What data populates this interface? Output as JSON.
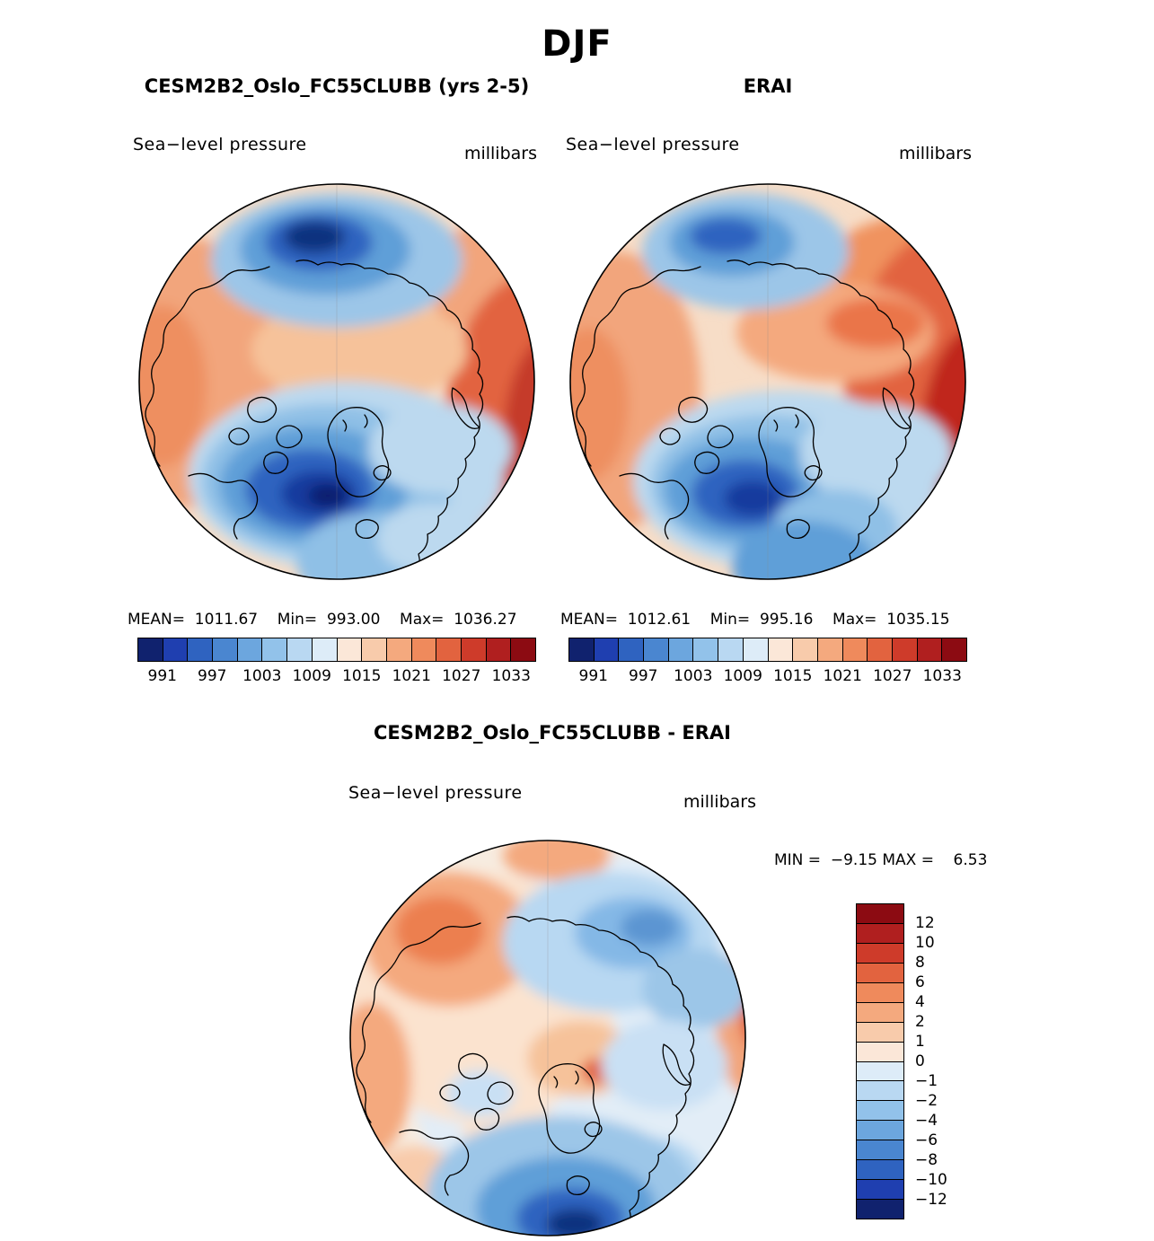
{
  "figure": {
    "season": "DJF"
  },
  "panels": [
    {
      "title": "CESM2B2_Oslo_FC55CLUBB (yrs 2-5)",
      "variable": "Sea−level pressure",
      "units": "millibars",
      "stats_line": "MEAN=  1011.67    Min=  993.00    Max=  1036.27"
    },
    {
      "title": "ERAI",
      "variable": "Sea−level pressure",
      "units": "millibars",
      "stats_line": "MEAN=  1012.61    Min=  995.16    Max=  1035.15"
    }
  ],
  "diff_panel": {
    "title": "CESM2B2_Oslo_FC55CLUBB - ERAI",
    "variable": "Sea−level pressure",
    "units": "millibars",
    "minmax_line": "MIN =  −9.15 MAX =    6.53"
  },
  "pressure_colorbar": {
    "ticks": [
      "991",
      "997",
      "1003",
      "1009",
      "1015",
      "1021",
      "1027",
      "1033"
    ],
    "colors": [
      "#10226e",
      "#1f3fb0",
      "#2f63c0",
      "#4a86d0",
      "#6ca6de",
      "#92c2ea",
      "#b9d8f2",
      "#ddecf8",
      "#fbe7d8",
      "#f8cbab",
      "#f4a97e",
      "#ef8a5c",
      "#e2633f",
      "#ce3b2a",
      "#b01f1f",
      "#8c0b12"
    ]
  },
  "diff_colorbar": {
    "labels": [
      "12",
      "10",
      "8",
      "6",
      "4",
      "2",
      "1",
      "0",
      "−1",
      "−2",
      "−4",
      "−6",
      "−8",
      "−10",
      "−12"
    ],
    "colors": [
      "#8c0b12",
      "#b01f1f",
      "#ce3b2a",
      "#e2633f",
      "#ef8a5c",
      "#f4a97e",
      "#f8cbab",
      "#fbe7d8",
      "#ddecf8",
      "#b9d8f2",
      "#92c2ea",
      "#6ca6de",
      "#4a86d0",
      "#2f63c0",
      "#1f3fb0",
      "#10226e"
    ]
  },
  "chart_data": [
    {
      "type": "heatmap",
      "panel": "top-left",
      "season": "DJF",
      "title": "CESM2B2_Oslo_FC55CLUBB (yrs 2-5)",
      "variable": "Sea-level pressure",
      "units": "millibars",
      "projection": "north polar stereographic",
      "stats": {
        "mean": 1011.67,
        "min": 993.0,
        "max": 1036.27
      },
      "colorbar_ticks": [
        991,
        997,
        1003,
        1009,
        1015,
        1021,
        1027,
        1033
      ],
      "contour_interval": 3
    },
    {
      "type": "heatmap",
      "panel": "top-right",
      "season": "DJF",
      "title": "ERAI",
      "variable": "Sea-level pressure",
      "units": "millibars",
      "projection": "north polar stereographic",
      "stats": {
        "mean": 1012.61,
        "min": 995.16,
        "max": 1035.15
      },
      "colorbar_ticks": [
        991,
        997,
        1003,
        1009,
        1015,
        1021,
        1027,
        1033
      ],
      "contour_interval": 3
    },
    {
      "type": "heatmap",
      "panel": "bottom",
      "season": "DJF",
      "title": "CESM2B2_Oslo_FC55CLUBB - ERAI",
      "variable": "Sea-level pressure difference",
      "units": "millibars",
      "projection": "north polar stereographic",
      "stats": {
        "min": -9.15,
        "max": 6.53
      },
      "colorbar_levels": [
        12,
        10,
        8,
        6,
        4,
        2,
        1,
        0,
        -1,
        -2,
        -4,
        -6,
        -8,
        -10,
        -12
      ]
    }
  ]
}
